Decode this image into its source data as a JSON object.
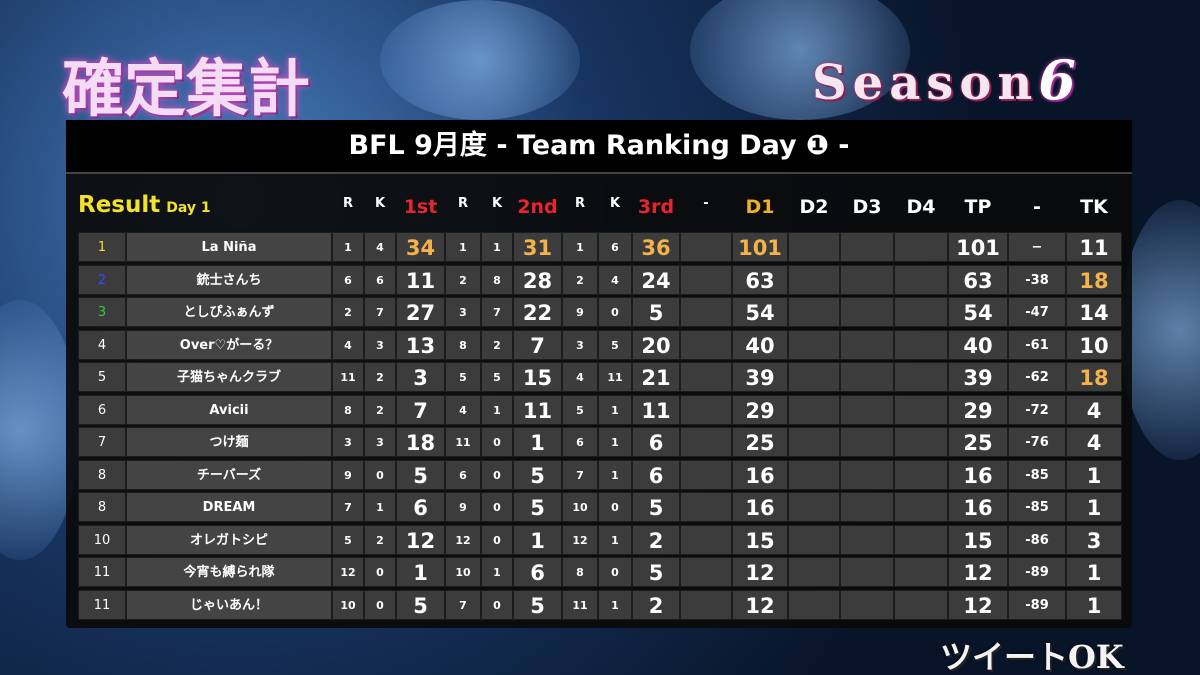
{
  "header": {
    "title": "確定集計",
    "season_label": "Season",
    "season_number": "6"
  },
  "table": {
    "title": "BFL 9月度 - Team Ranking Day ❶ -",
    "result_label": "Result",
    "day_label": "Day 1",
    "columns": [
      "R",
      "K",
      "1st",
      "R",
      "K",
      "2nd",
      "R",
      "K",
      "3rd",
      "-",
      "D1",
      "D2",
      "D3",
      "D4",
      "TP",
      "-",
      "TK"
    ],
    "rows": [
      [
        1,
        "La Niña",
        1,
        4,
        34,
        1,
        1,
        31,
        1,
        6,
        36,
        null,
        101,
        null,
        null,
        null,
        101,
        "−",
        11
      ],
      [
        2,
        "銃士さんち",
        6,
        6,
        11,
        2,
        8,
        28,
        2,
        4,
        24,
        null,
        63,
        null,
        null,
        null,
        63,
        -38,
        18
      ],
      [
        3,
        "としぴふぁんず",
        2,
        7,
        27,
        3,
        7,
        22,
        9,
        0,
        5,
        null,
        54,
        null,
        null,
        null,
        54,
        -47,
        14
      ],
      [
        4,
        "Over♡がーる？",
        4,
        3,
        13,
        8,
        2,
        7,
        3,
        5,
        20,
        null,
        40,
        null,
        null,
        null,
        40,
        -61,
        10
      ],
      [
        5,
        "子猫ちゃんクラブ",
        11,
        2,
        3,
        5,
        5,
        15,
        4,
        11,
        21,
        null,
        39,
        null,
        null,
        null,
        39,
        -62,
        18
      ],
      [
        6,
        "Avicii",
        8,
        2,
        7,
        4,
        1,
        11,
        5,
        1,
        11,
        null,
        29,
        null,
        null,
        null,
        29,
        -72,
        4
      ],
      [
        7,
        "つけ麺",
        3,
        3,
        18,
        11,
        0,
        1,
        6,
        1,
        6,
        null,
        25,
        null,
        null,
        null,
        25,
        -76,
        4
      ],
      [
        8,
        "チーバーズ",
        9,
        0,
        5,
        6,
        0,
        5,
        7,
        1,
        6,
        null,
        16,
        null,
        null,
        null,
        16,
        -85,
        1
      ],
      [
        8,
        "DREAM",
        7,
        1,
        6,
        9,
        0,
        5,
        10,
        0,
        5,
        null,
        16,
        null,
        null,
        null,
        16,
        -85,
        1
      ],
      [
        10,
        "オレガトシピ",
        5,
        2,
        12,
        12,
        0,
        1,
        12,
        1,
        2,
        null,
        15,
        null,
        null,
        null,
        15,
        -86,
        3
      ],
      [
        11,
        "今宵も縛られ隊",
        12,
        0,
        1,
        10,
        1,
        6,
        8,
        0,
        5,
        null,
        12,
        null,
        null,
        null,
        12,
        -89,
        1
      ],
      [
        11,
        "じゃいあん！",
        10,
        0,
        5,
        7,
        0,
        5,
        11,
        1,
        2,
        null,
        12,
        null,
        null,
        null,
        12,
        -89,
        1
      ]
    ]
  },
  "footer": {
    "note": "ツイートOK"
  }
}
